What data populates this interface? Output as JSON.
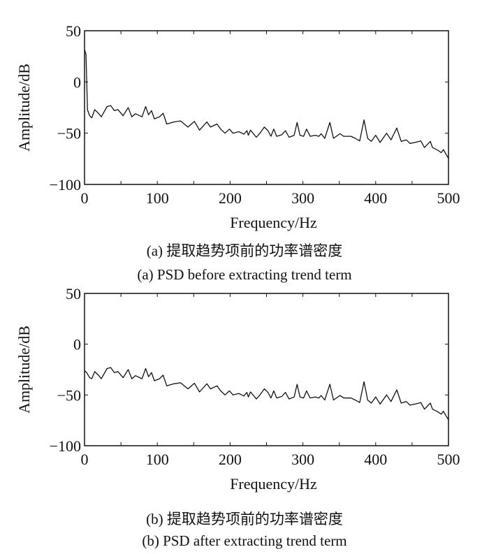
{
  "chart_data": [
    {
      "type": "line",
      "xlabel": "Frequency/Hz",
      "ylabel": "Amplitude/dB",
      "xlim": [
        0,
        500
      ],
      "ylim": [
        -100,
        50
      ],
      "xticks": [
        "0",
        "100",
        "200",
        "300",
        "400",
        "500"
      ],
      "yticks": [
        "50",
        "0",
        "−50",
        "−100"
      ],
      "caption_cn": "(a) 提取趋势项前的功率谱密度",
      "caption_en": "(a) PSD before extracting trend term",
      "series": [
        {
          "name": "PSD",
          "points": [
            [
              0,
              31.5
            ],
            [
              2,
              27
            ],
            [
              4,
              -27
            ],
            [
              7,
              -33
            ],
            [
              10,
              -35
            ],
            [
              14,
              -27
            ],
            [
              19,
              -30.5
            ],
            [
              23,
              -34
            ],
            [
              31,
              -24
            ],
            [
              36,
              -23
            ],
            [
              41,
              -28
            ],
            [
              46,
              -27
            ],
            [
              53,
              -33
            ],
            [
              60,
              -25
            ],
            [
              65,
              -34
            ],
            [
              70,
              -31
            ],
            [
              79,
              -34
            ],
            [
              84,
              -24
            ],
            [
              88,
              -32
            ],
            [
              92,
              -28
            ],
            [
              96,
              -36
            ],
            [
              103,
              -34
            ],
            [
              108,
              -30.5
            ],
            [
              113,
              -41
            ],
            [
              123,
              -39
            ],
            [
              132,
              -38
            ],
            [
              142,
              -44
            ],
            [
              151,
              -38.5
            ],
            [
              158,
              -47
            ],
            [
              168,
              -39
            ],
            [
              173,
              -44
            ],
            [
              182,
              -41
            ],
            [
              187,
              -46
            ],
            [
              193,
              -50
            ],
            [
              199,
              -46
            ],
            [
              204,
              -50
            ],
            [
              212,
              -48.5
            ],
            [
              219,
              -51
            ],
            [
              223,
              -47.5
            ],
            [
              225,
              -52
            ],
            [
              228,
              -47
            ],
            [
              236,
              -54
            ],
            [
              241,
              -50
            ],
            [
              247,
              -44
            ],
            [
              252,
              -47.5
            ],
            [
              256,
              -53
            ],
            [
              260,
              -46
            ],
            [
              264,
              -53
            ],
            [
              271,
              -51.5
            ],
            [
              276,
              -47.5
            ],
            [
              281,
              -54
            ],
            [
              288,
              -52
            ],
            [
              292,
              -39.5
            ],
            [
              296,
              -52
            ],
            [
              301,
              -53
            ],
            [
              305,
              -46
            ],
            [
              310,
              -53
            ],
            [
              317,
              -52
            ],
            [
              322,
              -53
            ],
            [
              325,
              -50.5
            ],
            [
              330,
              -55
            ],
            [
              337,
              -39.5
            ],
            [
              342,
              -55
            ],
            [
              351,
              -50.5
            ],
            [
              356,
              -53
            ],
            [
              366,
              -53
            ],
            [
              372,
              -55
            ],
            [
              378,
              -57.5
            ],
            [
              384,
              -37
            ],
            [
              389,
              -55
            ],
            [
              394,
              -58
            ],
            [
              400,
              -52
            ],
            [
              406,
              -59
            ],
            [
              411,
              -54
            ],
            [
              415,
              -50
            ],
            [
              421,
              -56.5
            ],
            [
              429,
              -45
            ],
            [
              435,
              -58
            ],
            [
              442,
              -56.5
            ],
            [
              447,
              -60
            ],
            [
              454,
              -59
            ],
            [
              462,
              -57.5
            ],
            [
              467,
              -64
            ],
            [
              475,
              -58
            ],
            [
              478,
              -64
            ],
            [
              485,
              -66.5
            ],
            [
              490,
              -69
            ],
            [
              493,
              -66
            ],
            [
              497,
              -71
            ],
            [
              500,
              -74.5
            ]
          ]
        }
      ]
    },
    {
      "type": "line",
      "xlabel": "Frequency/Hz",
      "ylabel": "Amplitude/dB",
      "xlim": [
        0,
        500
      ],
      "ylim": [
        -100,
        50
      ],
      "xticks": [
        "0",
        "100",
        "200",
        "300",
        "400",
        "500"
      ],
      "yticks": [
        "50",
        "0",
        "−50",
        "−100"
      ],
      "caption_cn": "(b) 提取趋势项前的功率谱密度",
      "caption_en": "(b) PSD after extracting trend term",
      "series": [
        {
          "name": "PSD",
          "points": [
            [
              0,
              -26
            ],
            [
              3,
              -28
            ],
            [
              7,
              -33
            ],
            [
              10,
              -34
            ],
            [
              14,
              -27
            ],
            [
              19,
              -30.5
            ],
            [
              23,
              -34
            ],
            [
              31,
              -24
            ],
            [
              36,
              -23
            ],
            [
              41,
              -28
            ],
            [
              46,
              -27
            ],
            [
              53,
              -33
            ],
            [
              60,
              -25
            ],
            [
              65,
              -34
            ],
            [
              70,
              -31
            ],
            [
              79,
              -34
            ],
            [
              84,
              -24
            ],
            [
              88,
              -32
            ],
            [
              92,
              -28
            ],
            [
              96,
              -36
            ],
            [
              103,
              -34
            ],
            [
              108,
              -30.5
            ],
            [
              113,
              -41
            ],
            [
              123,
              -39
            ],
            [
              132,
              -38
            ],
            [
              142,
              -44
            ],
            [
              151,
              -38.5
            ],
            [
              158,
              -47
            ],
            [
              168,
              -39
            ],
            [
              173,
              -44
            ],
            [
              182,
              -41
            ],
            [
              187,
              -46
            ],
            [
              193,
              -50
            ],
            [
              199,
              -46
            ],
            [
              204,
              -50
            ],
            [
              212,
              -48.5
            ],
            [
              219,
              -51
            ],
            [
              223,
              -47.5
            ],
            [
              225,
              -52
            ],
            [
              228,
              -47
            ],
            [
              236,
              -54
            ],
            [
              241,
              -50
            ],
            [
              247,
              -44
            ],
            [
              252,
              -47.5
            ],
            [
              256,
              -53
            ],
            [
              260,
              -46
            ],
            [
              264,
              -53
            ],
            [
              271,
              -51.5
            ],
            [
              276,
              -47.5
            ],
            [
              281,
              -54
            ],
            [
              288,
              -52
            ],
            [
              292,
              -39.5
            ],
            [
              296,
              -52
            ],
            [
              301,
              -53
            ],
            [
              305,
              -46
            ],
            [
              310,
              -53
            ],
            [
              317,
              -52
            ],
            [
              322,
              -53
            ],
            [
              325,
              -50.5
            ],
            [
              330,
              -55
            ],
            [
              337,
              -39.5
            ],
            [
              342,
              -55
            ],
            [
              351,
              -50.5
            ],
            [
              356,
              -53
            ],
            [
              366,
              -53
            ],
            [
              372,
              -55
            ],
            [
              378,
              -57.5
            ],
            [
              384,
              -37
            ],
            [
              389,
              -55
            ],
            [
              394,
              -58
            ],
            [
              400,
              -52
            ],
            [
              406,
              -59
            ],
            [
              411,
              -54
            ],
            [
              415,
              -50
            ],
            [
              421,
              -56.5
            ],
            [
              429,
              -45
            ],
            [
              435,
              -58
            ],
            [
              442,
              -56.5
            ],
            [
              447,
              -60
            ],
            [
              454,
              -59
            ],
            [
              462,
              -57.5
            ],
            [
              467,
              -64
            ],
            [
              475,
              -58
            ],
            [
              478,
              -64
            ],
            [
              485,
              -66.5
            ],
            [
              490,
              -69
            ],
            [
              493,
              -66
            ],
            [
              497,
              -71
            ],
            [
              500,
              -74.5
            ]
          ]
        }
      ]
    }
  ]
}
